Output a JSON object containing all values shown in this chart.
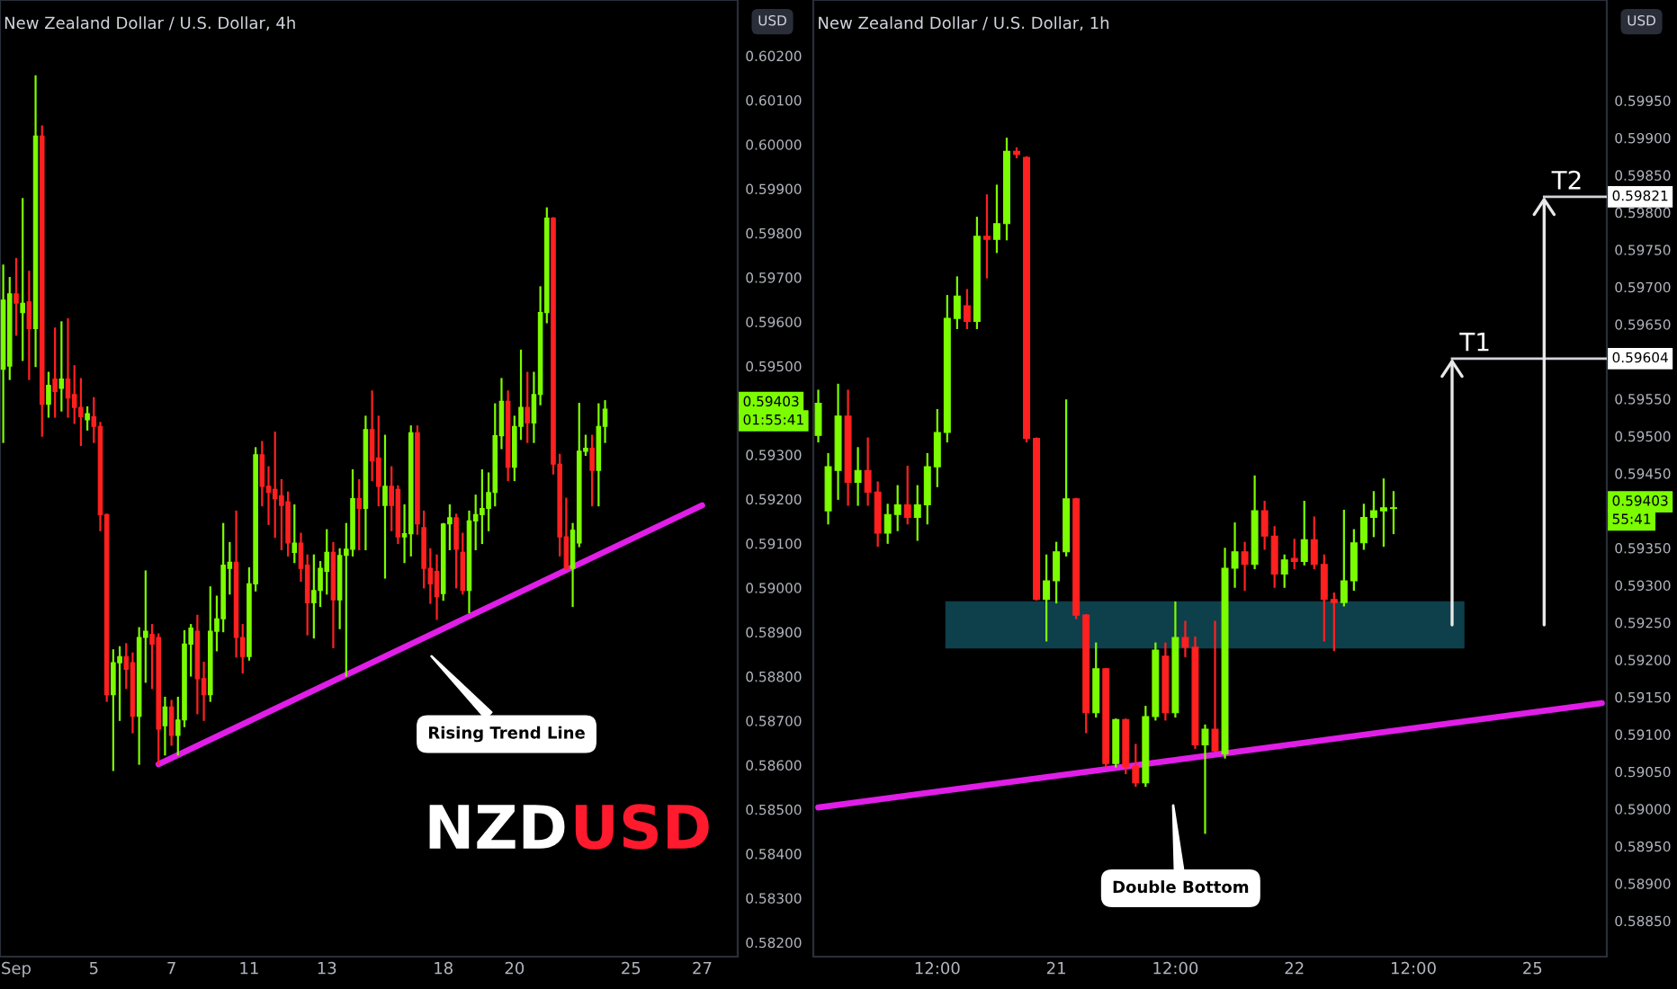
{
  "chart_data": [
    {
      "type": "candlestick",
      "title": "New Zealand Dollar / U.S. Dollar, 4h",
      "categories": [
        null,
        null,
        "Sep",
        null,
        null,
        null,
        null,
        null,
        null,
        null,
        null,
        null,
        null,
        null,
        "5",
        null,
        null,
        null,
        null,
        null,
        null,
        null,
        null,
        null,
        null,
        null,
        "7",
        null,
        null,
        null,
        null,
        null,
        null,
        null,
        null,
        null,
        null,
        null,
        "11",
        null,
        null,
        null,
        null,
        null,
        null,
        null,
        null,
        null,
        null,
        null,
        "13",
        null,
        null,
        null,
        null,
        null,
        null,
        null,
        null,
        null,
        null,
        null,
        null,
        null,
        null,
        null,
        null,
        null,
        "18",
        null,
        null,
        null,
        null,
        null,
        null,
        null,
        null,
        null,
        null,
        "20",
        null,
        null,
        null,
        null,
        null,
        null,
        null,
        null,
        null,
        null,
        null,
        null,
        null,
        null,
        null,
        null,
        null,
        "25",
        null,
        null,
        null,
        null,
        null,
        null,
        null,
        null,
        null,
        null,
        "27",
        null,
        null,
        null,
        null,
        null
      ],
      "colors": [
        "#7cfc00",
        "#7cfc00",
        "#ff2020",
        "#7cfc00",
        "#ff2020",
        "#7cfc00",
        "#ff2020",
        "#7cfc00",
        "#ff2020",
        "#7cfc00",
        "#ff2020",
        "#ff2020",
        "#ff2020",
        "#7cfc00",
        "#ff2020",
        "#ff2020",
        "#ff2020",
        "#7cfc00",
        "#7cfc00",
        "#ff2020",
        "#ff2020",
        "#7cfc00",
        "#7cfc00",
        "#ff2020",
        "#ff2020",
        "#7cfc00",
        "#ff2020",
        "#7cfc00",
        "#7cfc00",
        "#7cfc00",
        "#ff2020",
        "#ff2020",
        "#7cfc00",
        "#7cfc00",
        "#7cfc00",
        "#7cfc00",
        "#ff2020",
        "#ff2020",
        "#7cfc00",
        "#7cfc00",
        "#ff2020",
        "#ff2020",
        "#ff2020",
        "#ff2020",
        "#ff2020",
        "#7cfc00",
        "#ff2020",
        "#ff2020",
        "#7cfc00",
        "#7cfc00",
        "#7cfc00",
        "#ff2020",
        "#7cfc00",
        "#7cfc00",
        "#7cfc00",
        "#ff2020",
        "#7cfc00",
        "#ff2020",
        "#ff2020",
        "#7cfc00",
        "#ff2020",
        "#ff2020",
        "#7cfc00",
        "#7cfc00",
        "#ff2020",
        "#ff2020",
        "#ff2020",
        "#ff2020",
        "#7cfc00",
        "#7cfc00",
        "#ff2020",
        "#ff2020",
        "#7cfc00",
        "#7cfc00",
        "#7cfc00",
        "#7cfc00",
        "#7cfc00",
        "#7cfc00",
        "#ff2020",
        "#7cfc00",
        "#7cfc00",
        "#ff2020",
        "#7cfc00",
        "#7cfc00",
        "#7cfc00",
        "#ff2020",
        "#ff2020",
        "#ff2020",
        "#7cfc00",
        "#7cfc00",
        "#7cfc00",
        "#ff2020",
        "#7cfc00",
        "#7cfc00",
        null,
        null,
        null,
        null,
        null,
        null,
        null,
        null,
        null,
        null,
        null,
        null,
        null,
        null,
        null,
        null,
        null,
        null,
        null,
        null
      ],
      "ohlc": [
        [
          0.59493,
          0.59727,
          0.59329,
          0.59649
        ],
        [
          0.595,
          0.59699,
          0.59471,
          0.59663
        ],
        [
          0.59663,
          0.59742,
          0.59571,
          0.59642
        ],
        [
          0.59621,
          0.59877,
          0.59514,
          0.59642
        ],
        [
          0.59645,
          0.59713,
          0.59471,
          0.59585
        ],
        [
          0.59585,
          0.60154,
          0.595,
          0.60019
        ],
        [
          0.60019,
          0.60041,
          0.59343,
          0.59414
        ],
        [
          0.59414,
          0.59485,
          0.59386,
          0.59457
        ],
        [
          0.59471,
          0.59585,
          0.59386,
          0.59443
        ],
        [
          0.5945,
          0.59599,
          0.594,
          0.59471
        ],
        [
          0.59471,
          0.59606,
          0.59386,
          0.59428
        ],
        [
          0.59436,
          0.595,
          0.59372,
          0.59407
        ],
        [
          0.59407,
          0.59471,
          0.59322,
          0.59386
        ],
        [
          0.59379,
          0.59407,
          0.59357,
          0.59393
        ],
        [
          0.59386,
          0.59428,
          0.59329,
          0.59364
        ],
        [
          0.59364,
          0.59372,
          0.5913,
          0.59165
        ],
        [
          0.59165,
          0.59165,
          0.58745,
          0.58759
        ],
        [
          0.58759,
          0.58859,
          0.58589,
          0.58831
        ],
        [
          0.58831,
          0.58866,
          0.58702,
          0.58845
        ],
        [
          0.58845,
          0.58873,
          0.58774,
          0.58816
        ],
        [
          0.58831,
          0.58852,
          0.58674,
          0.5871
        ],
        [
          0.5871,
          0.58909,
          0.58603,
          0.58888
        ],
        [
          0.58888,
          0.59037,
          0.58788,
          0.58902
        ],
        [
          0.58895,
          0.58916,
          0.58774,
          0.58873
        ],
        [
          0.58888,
          0.58895,
          0.58603,
          0.58681
        ],
        [
          0.58689,
          0.58752,
          0.58624,
          0.58731
        ],
        [
          0.58731,
          0.58745,
          0.58646,
          0.58667
        ],
        [
          0.58667,
          0.58752,
          0.58624,
          0.58702
        ],
        [
          0.58702,
          0.58902,
          0.58688,
          0.58873
        ],
        [
          0.58873,
          0.58916,
          0.58802,
          0.58909
        ],
        [
          0.58902,
          0.58937,
          0.58717,
          0.58795
        ],
        [
          0.58795,
          0.58831,
          0.58702,
          0.58759
        ],
        [
          0.58759,
          0.59001,
          0.58745,
          0.58902
        ],
        [
          0.58902,
          0.5898,
          0.58859,
          0.5893
        ],
        [
          0.5893,
          0.59144,
          0.58902,
          0.59051
        ],
        [
          0.59044,
          0.59101,
          0.58987,
          0.59058
        ],
        [
          0.59058,
          0.59172,
          0.58845,
          0.58888
        ],
        [
          0.58888,
          0.58916,
          0.58809,
          0.58845
        ],
        [
          0.58845,
          0.59044,
          0.58838,
          0.59009
        ],
        [
          0.59009,
          0.59315,
          0.58994,
          0.593
        ],
        [
          0.593,
          0.59329,
          0.59186,
          0.59229
        ],
        [
          0.59229,
          0.59272,
          0.59144,
          0.59215
        ],
        [
          0.59222,
          0.5935,
          0.59115,
          0.59201
        ],
        [
          0.59208,
          0.59243,
          0.59087,
          0.59186
        ],
        [
          0.59194,
          0.59215,
          0.59073,
          0.59101
        ],
        [
          0.5908,
          0.59186,
          0.59058,
          0.59101
        ],
        [
          0.59101,
          0.59122,
          0.59016,
          0.59044
        ],
        [
          0.59051,
          0.59073,
          0.58895,
          0.58966
        ],
        [
          0.58966,
          0.59073,
          0.58888,
          0.58994
        ],
        [
          0.58994,
          0.59058,
          0.58959,
          0.59044
        ],
        [
          0.59037,
          0.5913,
          0.58987,
          0.5908
        ],
        [
          0.5908,
          0.59101,
          0.58866,
          0.58973
        ],
        [
          0.58973,
          0.59087,
          0.58909,
          0.59073
        ],
        [
          0.59073,
          0.59144,
          0.58802,
          0.59087
        ],
        [
          0.59087,
          0.59265,
          0.59073,
          0.59201
        ],
        [
          0.59201,
          0.59243,
          0.59087,
          0.59179
        ],
        [
          0.59179,
          0.59386,
          0.59087,
          0.59357
        ],
        [
          0.59357,
          0.59443,
          0.59243,
          0.59286
        ],
        [
          0.59293,
          0.59386,
          0.59186,
          0.59229
        ],
        [
          0.59186,
          0.59343,
          0.59023,
          0.59229
        ],
        [
          0.59229,
          0.59272,
          0.5913,
          0.59186
        ],
        [
          0.59222,
          0.59229,
          0.59101,
          0.59115
        ],
        [
          0.59115,
          0.59186,
          0.59058,
          0.59122
        ],
        [
          0.59122,
          0.59364,
          0.59073,
          0.5935
        ],
        [
          0.5935,
          0.59364,
          0.59122,
          0.59144
        ],
        [
          0.59136,
          0.59172,
          0.59001,
          0.59044
        ],
        [
          0.59044,
          0.59087,
          0.58966,
          0.59009
        ],
        [
          0.59037,
          0.59073,
          0.5893,
          0.5898
        ],
        [
          0.58987,
          0.59144,
          0.58973,
          0.59144
        ],
        [
          0.59144,
          0.59186,
          0.59087,
          0.59158
        ],
        [
          0.59158,
          0.59165,
          0.59001,
          0.59087
        ],
        [
          0.5908,
          0.59122,
          0.58987,
          0.58994
        ],
        [
          0.58994,
          0.59172,
          0.58945,
          0.59151
        ],
        [
          0.59151,
          0.59208,
          0.59087,
          0.59165
        ],
        [
          0.59165,
          0.59265,
          0.59101,
          0.59179
        ],
        [
          0.59179,
          0.59258,
          0.5913,
          0.59215
        ],
        [
          0.59215,
          0.59414,
          0.59186,
          0.59343
        ],
        [
          0.59343,
          0.59471,
          0.59315,
          0.59421
        ],
        [
          0.59421,
          0.59443,
          0.59243,
          0.59272
        ],
        [
          0.59272,
          0.59386,
          0.59243,
          0.59364
        ],
        [
          0.59364,
          0.59535,
          0.59336,
          0.59407
        ],
        [
          0.59407,
          0.59485,
          0.59329,
          0.59372
        ],
        [
          0.59372,
          0.59485,
          0.59329,
          0.59436
        ],
        [
          0.59436,
          0.59678,
          0.59414,
          0.59621
        ],
        [
          0.59621,
          0.59856,
          0.59599,
          0.59834
        ],
        [
          0.59834,
          0.59834,
          0.59258,
          0.59279
        ],
        [
          0.59279,
          0.593,
          0.59073,
          0.59115
        ],
        [
          0.59115,
          0.59201,
          0.59044,
          0.59044
        ],
        [
          0.59044,
          0.59144,
          0.58959,
          0.5913
        ],
        [
          0.59101,
          0.59415,
          0.59094,
          0.59308
        ],
        [
          0.59308,
          0.59343,
          0.593,
          0.59315
        ],
        [
          0.59315,
          0.59343,
          0.59186,
          0.59265
        ],
        [
          0.59265,
          0.59414,
          0.59186,
          0.59364
        ],
        [
          0.59364,
          0.59421,
          0.59329,
          0.59403
        ],
        null,
        null,
        null,
        null,
        null,
        null,
        null,
        null,
        null,
        null,
        null,
        null,
        null,
        null,
        null,
        null,
        null,
        null,
        null,
        null
      ],
      "series": [
        {
          "type": "line",
          "color": "#e01ee8",
          "values": [
            null,
            null,
            null,
            null,
            null,
            null,
            null,
            null,
            null,
            null,
            null,
            null,
            null,
            null,
            null,
            null,
            null,
            null,
            null,
            null,
            null,
            null,
            null,
            null,
            0.58602,
            null,
            null,
            null,
            null,
            null,
            null,
            null,
            null,
            null,
            null,
            null,
            null,
            null,
            null,
            null,
            null,
            null,
            null,
            null,
            null,
            null,
            null,
            null,
            null,
            null,
            null,
            null,
            null,
            null,
            null,
            null,
            null,
            null,
            null,
            null,
            null,
            null,
            null,
            null,
            null,
            null,
            null,
            null,
            null,
            null,
            null,
            null,
            null,
            null,
            null,
            null,
            null,
            null,
            null,
            null,
            null,
            null,
            null,
            null,
            null,
            null,
            null,
            null,
            null,
            null,
            null,
            null,
            null,
            null,
            null,
            null,
            null,
            null,
            null,
            null,
            null,
            null,
            null,
            null,
            null,
            null,
            null,
            null,
            0.59186,
            null,
            null,
            null,
            null,
            null
          ]
        }
      ],
      "ylim": [
        0.58168,
        0.60326
      ],
      "yticks": [
        {
          "value": 0.582,
          "label": "0.58200"
        },
        {
          "value": 0.583,
          "label": "0.58300"
        },
        {
          "value": 0.584,
          "label": "0.58400"
        },
        {
          "value": 0.585,
          "label": "0.58500"
        },
        {
          "value": 0.586,
          "label": "0.58600"
        },
        {
          "value": 0.587,
          "label": "0.58700"
        },
        {
          "value": 0.588,
          "label": "0.58800"
        },
        {
          "value": 0.589,
          "label": "0.58900"
        },
        {
          "value": 0.59,
          "label": "0.59000"
        },
        {
          "value": 0.591,
          "label": "0.59100"
        },
        {
          "value": 0.592,
          "label": "0.59200"
        },
        {
          "value": 0.593,
          "label": "0.59300"
        },
        {
          "value": 0.595,
          "label": "0.59500"
        },
        {
          "value": 0.596,
          "label": "0.59600"
        },
        {
          "value": 0.597,
          "label": "0.59700"
        },
        {
          "value": 0.598,
          "label": "0.59800"
        },
        {
          "value": 0.599,
          "label": "0.59900"
        },
        {
          "value": 0.6,
          "label": "0.60000"
        },
        {
          "value": 0.601,
          "label": "0.60100"
        },
        {
          "value": 0.602,
          "label": "0.60200"
        }
      ],
      "annotations": [
        "Rising Trend Line",
        "0.59403",
        "01:55:41",
        "USD",
        "NZD",
        "USD"
      ]
    },
    {
      "type": "candlestick",
      "title": "New Zealand Dollar / U.S. Dollar, 1h",
      "categories": [
        null,
        null,
        null,
        null,
        null,
        null,
        null,
        null,
        null,
        null,
        null,
        null,
        "12:00",
        null,
        null,
        null,
        null,
        null,
        null,
        null,
        null,
        null,
        null,
        null,
        "21",
        null,
        null,
        null,
        null,
        null,
        null,
        null,
        null,
        null,
        null,
        null,
        "12:00",
        null,
        null,
        null,
        null,
        null,
        null,
        null,
        null,
        null,
        null,
        null,
        "22",
        null,
        null,
        null,
        null,
        null,
        null,
        null,
        null,
        null,
        null,
        null,
        "12:00",
        null,
        null,
        null,
        null,
        null,
        null,
        null,
        null,
        null,
        null,
        null,
        "25",
        null,
        null,
        null,
        null,
        null,
        null,
        null
      ],
      "colors": [
        "#7cfc00",
        "#7cfc00",
        "#7cfc00",
        "#ff2020",
        "#7cfc00",
        "#ff2020",
        "#ff2020",
        "#7cfc00",
        "#7cfc00",
        "#ff2020",
        "#7cfc00",
        "#7cfc00",
        "#7cfc00",
        "#7cfc00",
        "#7cfc00",
        "#ff2020",
        "#7cfc00",
        "#ff2020",
        "#7cfc00",
        "#7cfc00",
        "#ff2020",
        "#ff2020",
        "#ff2020",
        "#7cfc00",
        "#7cfc00",
        "#7cfc00",
        "#ff2020",
        "#ff2020",
        "#7cfc00",
        "#ff2020",
        "#7cfc00",
        "#ff2020",
        "#ff2020",
        "#7cfc00",
        "#7cfc00",
        "#ff2020",
        "#7cfc00",
        "#ff2020",
        "#ff2020",
        "#7cfc00",
        "#ff2020",
        "#7cfc00",
        "#7cfc00",
        "#ff2020",
        "#7cfc00",
        "#ff2020",
        "#ff2020",
        "#7cfc00",
        "#ff2020",
        "#7cfc00",
        "#ff2020",
        "#ff2020",
        "#ff2020",
        "#7cfc00",
        "#7cfc00",
        "#7cfc00",
        "#7cfc00",
        "#7cfc00",
        "#7cfc00",
        null,
        null,
        null,
        null,
        null,
        null,
        null,
        null,
        null,
        null,
        null,
        null,
        null,
        null,
        null,
        null,
        null,
        null,
        null,
        null,
        null
      ],
      "ohlc": [
        [
          0.59501,
          0.59561,
          0.59493,
          0.59544
        ],
        [
          0.594,
          0.59476,
          0.59383,
          0.59459
        ],
        [
          0.59454,
          0.59569,
          0.59416,
          0.59527
        ],
        [
          0.59527,
          0.59561,
          0.59408,
          0.59438
        ],
        [
          0.59438,
          0.59484,
          0.59408,
          0.59454
        ],
        [
          0.59454,
          0.59497,
          0.59408,
          0.59425
        ],
        [
          0.59425,
          0.59438,
          0.59353,
          0.5937
        ],
        [
          0.5937,
          0.59408,
          0.59357,
          0.59395
        ],
        [
          0.59395,
          0.59433,
          0.59374,
          0.59408
        ],
        [
          0.59408,
          0.59459,
          0.59383,
          0.59391
        ],
        [
          0.59391,
          0.59433,
          0.59361,
          0.59408
        ],
        [
          0.59408,
          0.59476,
          0.59383,
          0.59459
        ],
        [
          0.59459,
          0.59535,
          0.59433,
          0.59505
        ],
        [
          0.59505,
          0.59688,
          0.59493,
          0.59658
        ],
        [
          0.59658,
          0.59713,
          0.59645,
          0.59688
        ],
        [
          0.59675,
          0.59696,
          0.59645,
          0.59654
        ],
        [
          0.59654,
          0.59793,
          0.59645,
          0.59768
        ],
        [
          0.59768,
          0.59823,
          0.59713,
          0.59764
        ],
        [
          0.59764,
          0.59836,
          0.59747,
          0.59785
        ],
        [
          0.59785,
          0.59899,
          0.59764,
          0.59882
        ],
        [
          0.59882,
          0.59886,
          0.59874,
          0.59878
        ],
        [
          0.59874,
          0.59874,
          0.59493,
          0.59497
        ],
        [
          0.59497,
          0.59497,
          0.59281,
          0.59281
        ],
        [
          0.59281,
          0.5934,
          0.59226,
          0.59306
        ],
        [
          0.59306,
          0.59357,
          0.59277,
          0.59345
        ],
        [
          0.59345,
          0.59548,
          0.5934,
          0.59416
        ],
        [
          0.59416,
          0.59416,
          0.59256,
          0.5926
        ],
        [
          0.5926,
          0.5926,
          0.59103,
          0.59129
        ],
        [
          0.59129,
          0.59222,
          0.59124,
          0.59188
        ],
        [
          0.59188,
          0.59188,
          0.59057,
          0.59061
        ],
        [
          0.59061,
          0.5912,
          0.59057,
          0.5912
        ],
        [
          0.5912,
          0.5912,
          0.59048,
          0.59057
        ],
        [
          0.59057,
          0.59086,
          0.59031,
          0.59035
        ],
        [
          0.59035,
          0.59137,
          0.59031,
          0.59124
        ],
        [
          0.59124,
          0.59222,
          0.5912,
          0.59213
        ],
        [
          0.59205,
          0.59222,
          0.5912,
          0.59129
        ],
        [
          0.59129,
          0.59277,
          0.59124,
          0.5923
        ],
        [
          0.5923,
          0.59251,
          0.59205,
          0.59217
        ],
        [
          0.59217,
          0.5923,
          0.59082,
          0.59086
        ],
        [
          0.59086,
          0.59112,
          0.58968,
          0.59107
        ],
        [
          0.59107,
          0.59251,
          0.59078,
          0.59078
        ],
        [
          0.59074,
          0.59349,
          0.59069,
          0.59323
        ],
        [
          0.59323,
          0.59383,
          0.59298,
          0.59345
        ],
        [
          0.59345,
          0.59357,
          0.59294,
          0.59328
        ],
        [
          0.59328,
          0.59446,
          0.59323,
          0.594
        ],
        [
          0.594,
          0.59412,
          0.59349,
          0.59366
        ],
        [
          0.59366,
          0.59378,
          0.59298,
          0.59315
        ],
        [
          0.59315,
          0.5934,
          0.59298,
          0.59334
        ],
        [
          0.59336,
          0.59361,
          0.59323,
          0.59332
        ],
        [
          0.59332,
          0.59412,
          0.59328,
          0.59361
        ],
        [
          0.59361,
          0.59391,
          0.59323,
          0.59328
        ],
        [
          0.59328,
          0.5934,
          0.59226,
          0.59281
        ],
        [
          0.59281,
          0.59289,
          0.59213,
          0.59277
        ],
        [
          0.59277,
          0.594,
          0.59273,
          0.59306
        ],
        [
          0.59306,
          0.59374,
          0.59294,
          0.59357
        ],
        [
          0.59357,
          0.59408,
          0.59349,
          0.59391
        ],
        [
          0.59391,
          0.59425,
          0.59366,
          0.594
        ],
        [
          0.594,
          0.59442,
          0.59353,
          0.59404
        ],
        [
          0.59404,
          0.59425,
          0.5937,
          0.59403
        ],
        null,
        null,
        null,
        null,
        null,
        null,
        null,
        null,
        null,
        null,
        null,
        null,
        null,
        null,
        null,
        null,
        null,
        null,
        null,
        null,
        null
      ],
      "series": [
        {
          "type": "line",
          "color": "#e01ee8",
          "values": [
            0.59002,
            null,
            null,
            null,
            null,
            null,
            null,
            null,
            null,
            null,
            null,
            null,
            null,
            null,
            null,
            null,
            null,
            null,
            null,
            null,
            null,
            null,
            null,
            null,
            null,
            null,
            null,
            null,
            null,
            null,
            null,
            null,
            null,
            null,
            null,
            null,
            null,
            null,
            null,
            null,
            null,
            null,
            null,
            null,
            null,
            null,
            null,
            null,
            null,
            null,
            null,
            null,
            null,
            null,
            null,
            null,
            null,
            null,
            null,
            null,
            null,
            null,
            null,
            null,
            null,
            null,
            null,
            null,
            null,
            null,
            null,
            null,
            null,
            null,
            null,
            null,
            null,
            null,
            null,
            0.59142
          ]
        }
      ],
      "bands": [
        {
          "axis": "y",
          "from": 0.59217,
          "to": 0.59277,
          "color": "#1e8fa6"
        }
      ],
      "ref_lines": [
        {
          "axis": "y",
          "value": 0.59604,
          "label": "T1",
          "color": "#d1d4dc"
        },
        {
          "axis": "y",
          "value": 0.59821,
          "label": "T2",
          "color": "#d1d4dc"
        }
      ],
      "ylim": [
        0.58802,
        0.60085
      ],
      "yticks": [
        {
          "value": 0.5885,
          "label": "0.58850"
        },
        {
          "value": 0.589,
          "label": "0.58900"
        },
        {
          "value": 0.5895,
          "label": "0.58950"
        },
        {
          "value": 0.59,
          "label": "0.59000"
        },
        {
          "value": 0.5905,
          "label": "0.59050"
        },
        {
          "value": 0.591,
          "label": "0.59100"
        },
        {
          "value": 0.5915,
          "label": "0.59150"
        },
        {
          "value": 0.592,
          "label": "0.59200"
        },
        {
          "value": 0.5925,
          "label": "0.59250"
        },
        {
          "value": 0.593,
          "label": "0.59300"
        },
        {
          "value": 0.5935,
          "label": "0.59350"
        },
        {
          "value": 0.5945,
          "label": "0.59450"
        },
        {
          "value": 0.595,
          "label": "0.59500"
        },
        {
          "value": 0.5955,
          "label": "0.59550"
        },
        {
          "value": 0.5965,
          "label": "0.59650"
        },
        {
          "value": 0.597,
          "label": "0.59700"
        },
        {
          "value": 0.5975,
          "label": "0.59750"
        },
        {
          "value": 0.598,
          "label": "0.59800"
        },
        {
          "value": 0.5985,
          "label": "0.59850"
        },
        {
          "value": 0.599,
          "label": "0.59900"
        },
        {
          "value": 0.5995,
          "label": "0.59950"
        }
      ],
      "annotations": [
        "Double Bottom",
        "0.59403",
        "55:41",
        "USD",
        "0.59604",
        "0.59821"
      ]
    }
  ]
}
